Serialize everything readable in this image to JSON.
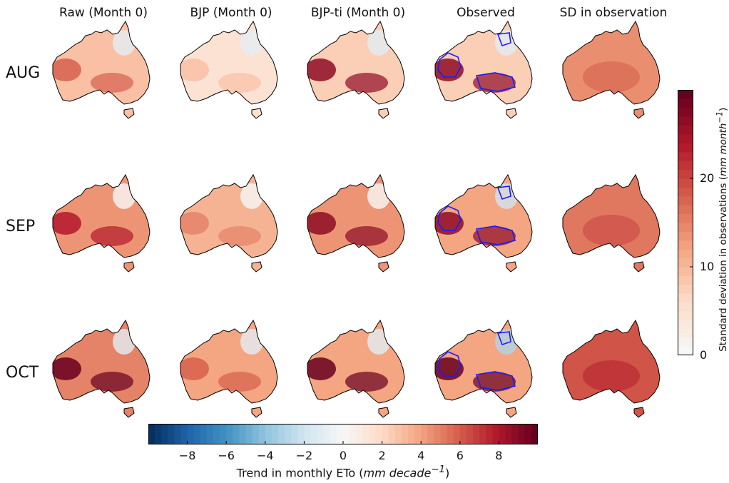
{
  "columns": [
    "Raw (Month 0)",
    "BJP (Month 0)",
    "BJP-ti (Month 0)",
    "Observed",
    "SD in observation"
  ],
  "rows": [
    "AUG",
    "SEP",
    "OCT"
  ],
  "map_fields": [
    [
      {
        "base": 3,
        "hot": 6,
        "cool_north": -1
      },
      {
        "base": 1.5,
        "hot": 3,
        "cool_north": -1
      },
      {
        "base": 2.5,
        "hot": 9,
        "cool_north": -1
      },
      {
        "base": 2.5,
        "hot": 9,
        "cool_north": -1,
        "contour": true
      },
      {
        "sd": 14
      }
    ],
    [
      {
        "base": 4.5,
        "hot": 8,
        "cool_north": 0
      },
      {
        "base": 3.5,
        "hot": 5,
        "cool_north": 0
      },
      {
        "base": 4.5,
        "hot": 9,
        "cool_north": 0
      },
      {
        "base": 4,
        "hot": 9,
        "cool_north": -2,
        "contour": true
      },
      {
        "sd": 16
      }
    ],
    [
      {
        "base": 5,
        "hot": 10,
        "cool_north": -1
      },
      {
        "base": 4,
        "hot": 6,
        "cool_north": -1
      },
      {
        "base": 4,
        "hot": 10,
        "cool_north": -1
      },
      {
        "base": 4,
        "hot": 10,
        "cool_north": -3,
        "contour": true
      },
      {
        "sd": 19
      }
    ]
  ],
  "colorbar_vertical": {
    "label_prefix": "Standard deviation in observations (",
    "label_units": "mm month",
    "label_sup": "−1",
    "label_suffix": ")",
    "ticks": [
      "0",
      "10",
      "20"
    ],
    "tick_values": [
      0,
      10,
      20
    ],
    "range": [
      0,
      30
    ],
    "colors": [
      "#f7f7f7",
      "#fddbc7",
      "#f4a582",
      "#d6604d",
      "#b2182b",
      "#67001f"
    ]
  },
  "colorbar_horizontal": {
    "label_prefix": "Trend in monthly ETo (",
    "label_units": "mm decade",
    "label_sup": "−1",
    "label_suffix": ")",
    "ticks": [
      "−8",
      "−6",
      "−4",
      "−2",
      "0",
      "2",
      "4",
      "6",
      "8"
    ],
    "tick_values": [
      -8,
      -6,
      -4,
      -2,
      0,
      2,
      4,
      6,
      8
    ],
    "range": [
      -10,
      10
    ],
    "colors": [
      "#053061",
      "#2166ac",
      "#4393c3",
      "#92c5de",
      "#d1e5f0",
      "#f7f7f7",
      "#fddbc7",
      "#f4a582",
      "#d6604d",
      "#b2182b",
      "#67001f"
    ]
  }
}
